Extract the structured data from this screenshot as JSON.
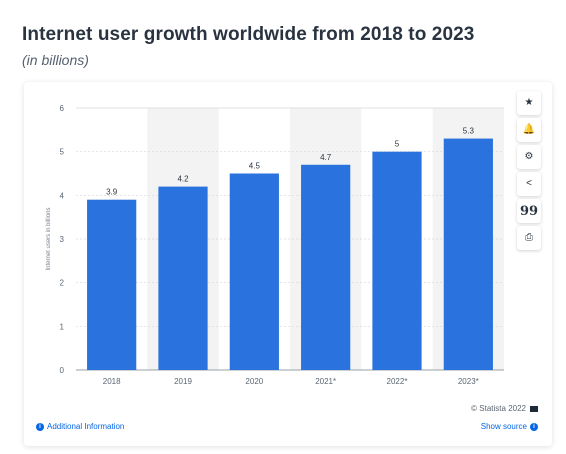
{
  "header": {
    "title": "Internet user growth worldwide from 2018 to 2023",
    "subtitle": "(in billions)"
  },
  "toolbar": {
    "items": [
      {
        "name": "star-icon",
        "glyph": "★"
      },
      {
        "name": "bell-icon",
        "glyph": "🔔"
      },
      {
        "name": "gear-icon",
        "glyph": "⚙"
      },
      {
        "name": "share-icon",
        "glyph": "<"
      },
      {
        "name": "quote-icon",
        "glyph": "99"
      },
      {
        "name": "print-icon",
        "glyph": "⎙"
      }
    ]
  },
  "footer": {
    "copyright": "© Statista 2022",
    "additional_info": "Additional Information",
    "show_source": "Show source",
    "info_glyph": "i"
  },
  "colors": {
    "bar": "#2a72de",
    "band": "#f3f3f3",
    "link": "#0666e6"
  },
  "chart_data": {
    "type": "bar",
    "categories": [
      "2018",
      "2019",
      "2020",
      "2021*",
      "2022*",
      "2023*"
    ],
    "values": [
      3.9,
      4.2,
      4.5,
      4.7,
      5,
      5.3
    ],
    "value_labels": [
      "3.9",
      "4.2",
      "4.5",
      "4.7",
      "5",
      "5.3"
    ],
    "ylabel": "Internet users in billions",
    "ylim": [
      0,
      6
    ],
    "yticks": [
      0,
      1,
      2,
      3,
      4,
      5,
      6
    ],
    "grid": true,
    "legend": "none"
  }
}
